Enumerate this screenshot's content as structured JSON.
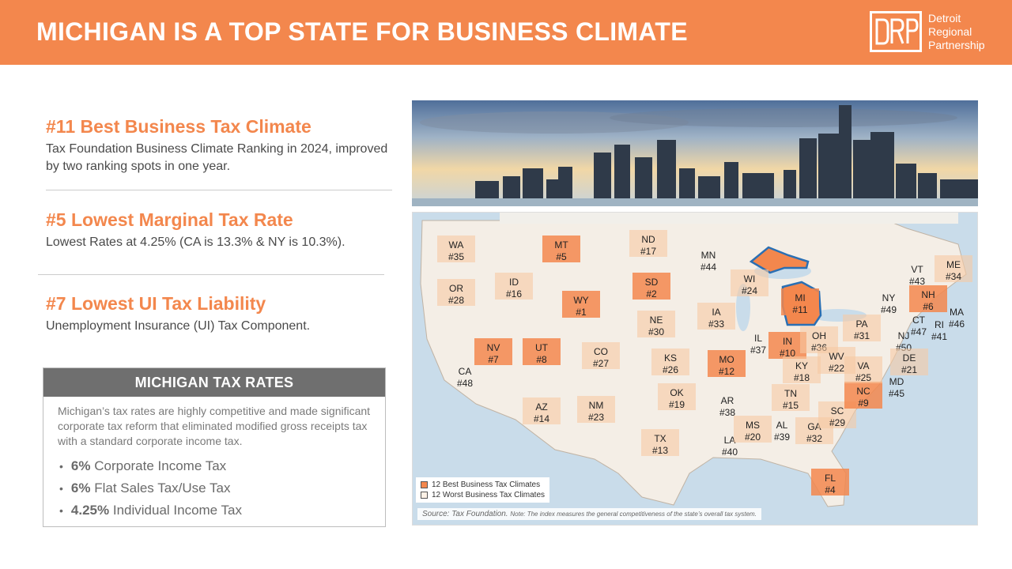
{
  "header": {
    "title": "MICHIGAN IS A TOP STATE FOR BUSINESS CLIMATE",
    "logo_lines": [
      "Detroit",
      "Regional",
      "Partnership"
    ],
    "accent": "#f3874d"
  },
  "stats": [
    {
      "title": "#11 Best Business Tax Climate",
      "desc": "Tax Foundation Business Climate Ranking in 2024, improved by two ranking spots in one year."
    },
    {
      "title": "#5 Lowest Marginal Tax Rate",
      "desc": "Lowest Rates at 4.25% (CA is 13.3% & NY is 10.3%)."
    },
    {
      "title": "#7 Lowest UI Tax Liability",
      "desc": "Unemployment Insurance (UI) Tax Component."
    }
  ],
  "rates": {
    "heading": "MICHIGAN TAX RATES",
    "desc": "Michigan’s tax rates are highly competitive and made significant corporate tax reform that eliminated modified gross receipts tax with a standard corporate income tax.",
    "items": [
      {
        "value": "6%",
        "label": "Corporate Income Tax"
      },
      {
        "value": "6%",
        "label": "Flat Sales Tax/Use Tax"
      },
      {
        "value": "4.25%",
        "label": "Individual Income Tax"
      }
    ]
  },
  "map": {
    "states": [
      {
        "abbr": "WA",
        "rank": "#35"
      },
      {
        "abbr": "OR",
        "rank": "#28"
      },
      {
        "abbr": "CA",
        "rank": "#48"
      },
      {
        "abbr": "ID",
        "rank": "#16"
      },
      {
        "abbr": "NV",
        "rank": "#7"
      },
      {
        "abbr": "MT",
        "rank": "#5"
      },
      {
        "abbr": "WY",
        "rank": "#1"
      },
      {
        "abbr": "UT",
        "rank": "#8"
      },
      {
        "abbr": "AZ",
        "rank": "#14"
      },
      {
        "abbr": "CO",
        "rank": "#27"
      },
      {
        "abbr": "NM",
        "rank": "#23"
      },
      {
        "abbr": "ND",
        "rank": "#17"
      },
      {
        "abbr": "SD",
        "rank": "#2"
      },
      {
        "abbr": "NE",
        "rank": "#30"
      },
      {
        "abbr": "KS",
        "rank": "#26"
      },
      {
        "abbr": "OK",
        "rank": "#19"
      },
      {
        "abbr": "TX",
        "rank": "#13"
      },
      {
        "abbr": "MN",
        "rank": "#44"
      },
      {
        "abbr": "IA",
        "rank": "#33"
      },
      {
        "abbr": "MO",
        "rank": "#12"
      },
      {
        "abbr": "AR",
        "rank": "#38"
      },
      {
        "abbr": "LA",
        "rank": "#40"
      },
      {
        "abbr": "WI",
        "rank": "#24"
      },
      {
        "abbr": "IL",
        "rank": "#37"
      },
      {
        "abbr": "MI",
        "rank": "#11"
      },
      {
        "abbr": "IN",
        "rank": "#10"
      },
      {
        "abbr": "OH",
        "rank": "#36"
      },
      {
        "abbr": "KY",
        "rank": "#18"
      },
      {
        "abbr": "TN",
        "rank": "#15"
      },
      {
        "abbr": "MS",
        "rank": "#20"
      },
      {
        "abbr": "AL",
        "rank": "#39"
      },
      {
        "abbr": "GA",
        "rank": "#32"
      },
      {
        "abbr": "FL",
        "rank": "#4"
      },
      {
        "abbr": "SC",
        "rank": "#29"
      },
      {
        "abbr": "NC",
        "rank": "#9"
      },
      {
        "abbr": "VA",
        "rank": "#25"
      },
      {
        "abbr": "WV",
        "rank": "#22"
      },
      {
        "abbr": "PA",
        "rank": "#31"
      },
      {
        "abbr": "NY",
        "rank": "#49"
      },
      {
        "abbr": "VT",
        "rank": "#43"
      },
      {
        "abbr": "NH",
        "rank": "#6"
      },
      {
        "abbr": "ME",
        "rank": "#34"
      },
      {
        "abbr": "MA",
        "rank": "#46"
      },
      {
        "abbr": "CT",
        "rank": "#47"
      },
      {
        "abbr": "RI",
        "rank": "#41"
      },
      {
        "abbr": "NJ",
        "rank": "#50"
      },
      {
        "abbr": "DE",
        "rank": "#21"
      },
      {
        "abbr": "MD",
        "rank": "#45"
      }
    ],
    "legend": [
      {
        "label": "12 Best Business Tax Climates",
        "color": "#f3874d"
      },
      {
        "label": "12 Worst Business Tax Climates",
        "color": "#fdf1e6"
      }
    ],
    "source": "Source: Tax Foundation.",
    "note": "Note: The index measures the general competitiveness of the state’s overall tax system."
  }
}
